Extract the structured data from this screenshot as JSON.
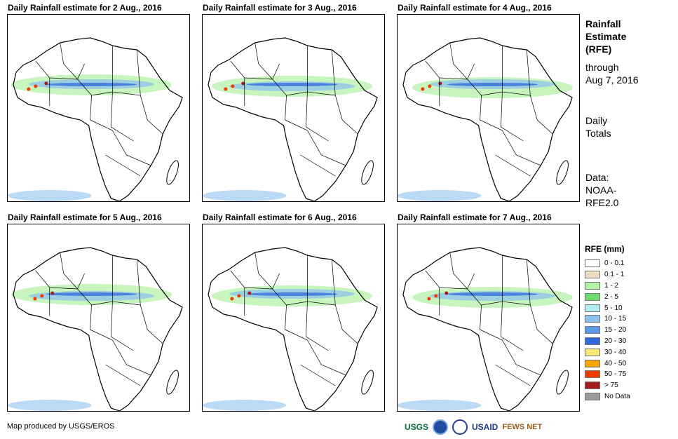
{
  "panels": [
    {
      "title": "Daily Rainfall estimate for 2 Aug., 2016"
    },
    {
      "title": "Daily Rainfall estimate for 3 Aug., 2016"
    },
    {
      "title": "Daily Rainfall estimate for 4 Aug., 2016"
    },
    {
      "title": "Daily Rainfall estimate for 5 Aug., 2016"
    },
    {
      "title": "Daily Rainfall estimate for 6 Aug., 2016"
    },
    {
      "title": "Daily Rainfall estimate for 7 Aug., 2016"
    }
  ],
  "side": {
    "title_lines": [
      "Rainfall",
      "Estimate",
      "(RFE)"
    ],
    "through_lines": [
      "through",
      "Aug 7, 2016"
    ],
    "totals_lines": [
      "Daily",
      "Totals"
    ],
    "data_lines": [
      "Data:",
      "NOAA-",
      "RFE2.0"
    ]
  },
  "legend": {
    "title": "RFE (mm)",
    "items": [
      {
        "label": "0 - 0.1",
        "color": "#ffffff"
      },
      {
        "label": "0.1 - 1",
        "color": "#f0dcc0"
      },
      {
        "label": "1 - 2",
        "color": "#b6f2a8"
      },
      {
        "label": "2 - 5",
        "color": "#6edc6e"
      },
      {
        "label": "5 - 10",
        "color": "#b4ecf6"
      },
      {
        "label": "10 - 15",
        "color": "#8ec2ee"
      },
      {
        "label": "15 - 20",
        "color": "#5a9ae6"
      },
      {
        "label": "20 - 30",
        "color": "#2f68d8"
      },
      {
        "label": "30 - 40",
        "color": "#fde87a"
      },
      {
        "label": "40 - 50",
        "color": "#f7a500"
      },
      {
        "label": "50 - 75",
        "color": "#f03a00"
      },
      {
        "label": "> 75",
        "color": "#a61c1c"
      },
      {
        "label": "No Data",
        "color": "#9a9a9a"
      }
    ]
  },
  "footer": {
    "credit": "Map produced by USGS/EROS"
  },
  "logos": {
    "usgs": "USGS",
    "usaid": "USAID",
    "fewsnet": "FEWS NET"
  }
}
